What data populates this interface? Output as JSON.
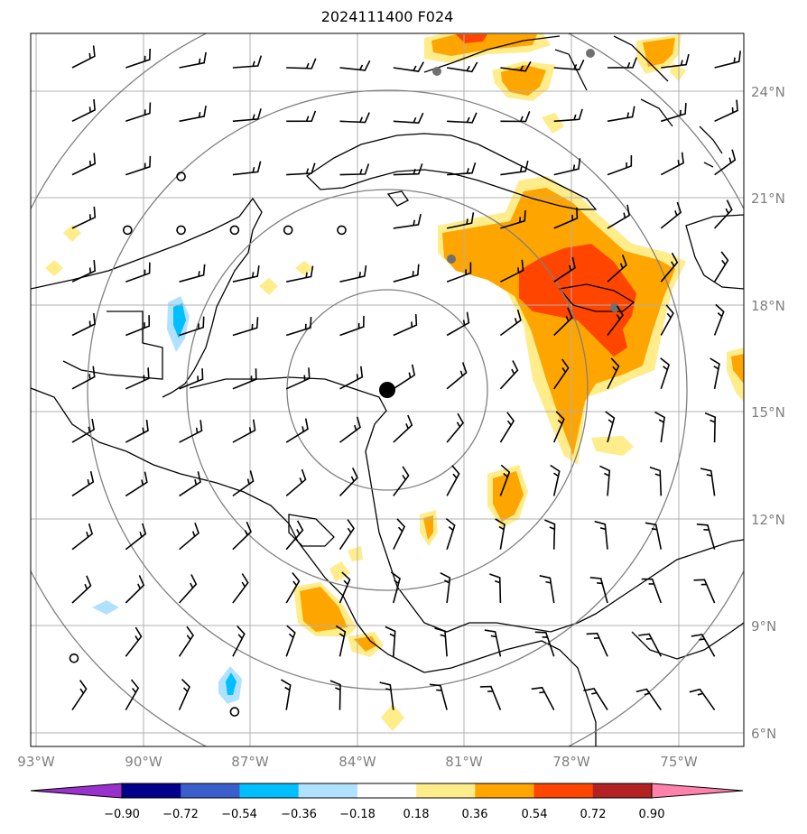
{
  "title": "2024111400 F024",
  "lat_labels": [
    "24°N",
    "21°N",
    "18°N",
    "15°N",
    "12°N",
    "9°N",
    "6°N"
  ],
  "lon_labels": [
    "93°W",
    "90°W",
    "87°W",
    "84°W",
    "81°W",
    "78°W",
    "75°W"
  ],
  "colorbar": {
    "labels": [
      "−0.90",
      "−0.72",
      "−0.54",
      "−0.36",
      "−0.18",
      "0.18",
      "0.36",
      "0.54",
      "0.72",
      "0.90"
    ],
    "colors": [
      "#9932cc",
      "#00008b",
      "#3a5fcd",
      "#00bfff",
      "#b0e2ff",
      "#ffffff",
      "#ffec8b",
      "#ffa500",
      "#ff4500",
      "#b22222",
      "#ff82ab"
    ]
  },
  "center_marker": {
    "lon": -83.1,
    "lat": 15.6
  },
  "range_rings_deg": [
    2.8,
    5.6,
    8.4,
    11.2
  ]
}
